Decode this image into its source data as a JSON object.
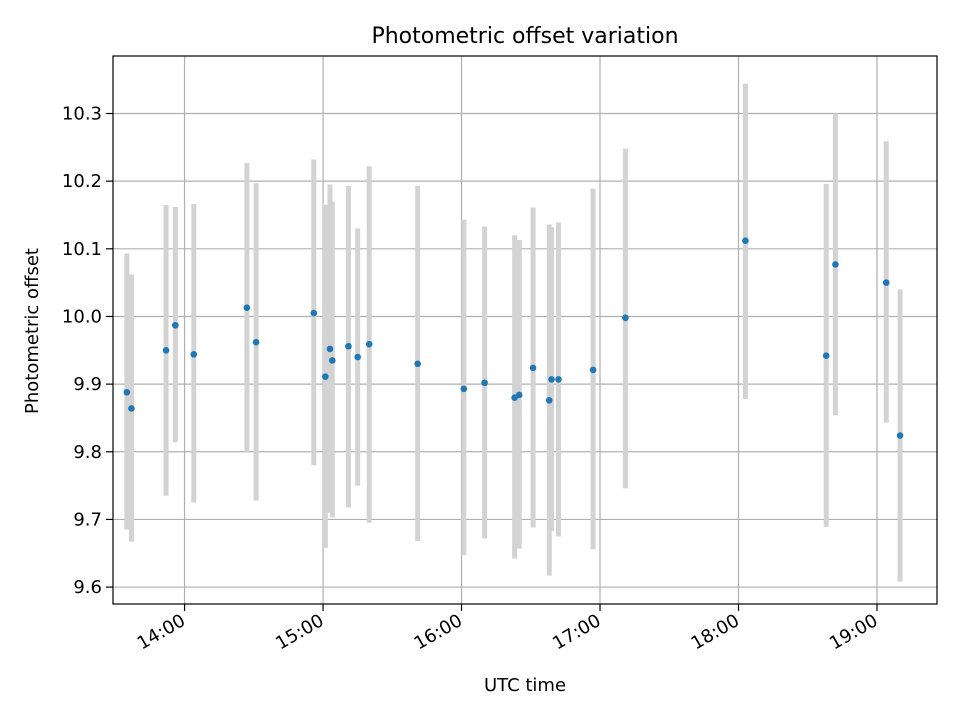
{
  "chart_data": {
    "type": "scatter",
    "title": "Photometric offset variation",
    "xlabel": "UTC time",
    "ylabel": "Photometric offset",
    "x_axis": {
      "kind": "time",
      "range": [
        "13:29",
        "19:26"
      ],
      "ticks": [
        "14:00",
        "15:00",
        "16:00",
        "17:00",
        "18:00",
        "19:00"
      ]
    },
    "y_axis": {
      "range": [
        9.575,
        10.385
      ],
      "ticks": [
        9.6,
        9.7,
        9.8,
        9.9,
        10.0,
        10.1,
        10.2,
        10.3
      ],
      "tick_labels": [
        "9.6",
        "9.7",
        "9.8",
        "9.9",
        "10.0",
        "10.1",
        "10.2",
        "10.3"
      ]
    },
    "grid": true,
    "colors": {
      "points": "#1f77b4",
      "error_bars": "#d3d3d3",
      "grid": "#b0b0b0"
    },
    "series": [
      {
        "marker": "point",
        "error_bars": "vertical",
        "points": [
          {
            "x": "13:35",
            "y": 9.888,
            "ylow": 9.685,
            "yhigh": 10.093
          },
          {
            "x": "13:37",
            "y": 9.864,
            "ylow": 9.667,
            "yhigh": 10.062
          },
          {
            "x": "13:52",
            "y": 9.95,
            "ylow": 9.735,
            "yhigh": 10.165
          },
          {
            "x": "13:56",
            "y": 9.987,
            "ylow": 9.814,
            "yhigh": 10.162
          },
          {
            "x": "14:04",
            "y": 9.944,
            "ylow": 9.725,
            "yhigh": 10.166
          },
          {
            "x": "14:27",
            "y": 10.013,
            "ylow": 9.8,
            "yhigh": 10.227
          },
          {
            "x": "14:31",
            "y": 9.962,
            "ylow": 9.728,
            "yhigh": 10.197
          },
          {
            "x": "14:56",
            "y": 10.005,
            "ylow": 9.78,
            "yhigh": 10.232
          },
          {
            "x": "15:01",
            "y": 9.911,
            "ylow": 9.658,
            "yhigh": 10.165
          },
          {
            "x": "15:03",
            "y": 9.952,
            "ylow": 9.71,
            "yhigh": 10.195
          },
          {
            "x": "15:04",
            "y": 9.935,
            "ylow": 9.703,
            "yhigh": 10.17
          },
          {
            "x": "15:11",
            "y": 9.956,
            "ylow": 9.718,
            "yhigh": 10.193
          },
          {
            "x": "15:15",
            "y": 9.94,
            "ylow": 9.75,
            "yhigh": 10.13
          },
          {
            "x": "15:20",
            "y": 9.959,
            "ylow": 9.695,
            "yhigh": 10.222
          },
          {
            "x": "15:41",
            "y": 9.93,
            "ylow": 9.668,
            "yhigh": 10.193
          },
          {
            "x": "16:01",
            "y": 9.893,
            "ylow": 9.647,
            "yhigh": 10.143
          },
          {
            "x": "16:10",
            "y": 9.902,
            "ylow": 9.672,
            "yhigh": 10.133
          },
          {
            "x": "16:23",
            "y": 9.88,
            "ylow": 9.642,
            "yhigh": 10.12
          },
          {
            "x": "16:25",
            "y": 9.884,
            "ylow": 9.657,
            "yhigh": 10.113
          },
          {
            "x": "16:31",
            "y": 9.924,
            "ylow": 9.688,
            "yhigh": 10.161
          },
          {
            "x": "16:38",
            "y": 9.876,
            "ylow": 9.617,
            "yhigh": 10.136
          },
          {
            "x": "16:39",
            "y": 9.907,
            "ylow": 9.683,
            "yhigh": 10.132
          },
          {
            "x": "16:42",
            "y": 9.907,
            "ylow": 9.675,
            "yhigh": 10.139
          },
          {
            "x": "16:57",
            "y": 9.921,
            "ylow": 9.656,
            "yhigh": 10.189
          },
          {
            "x": "17:11",
            "y": 9.998,
            "ylow": 9.746,
            "yhigh": 10.248
          },
          {
            "x": "18:03",
            "y": 10.112,
            "ylow": 9.878,
            "yhigh": 10.344
          },
          {
            "x": "18:38",
            "y": 9.942,
            "ylow": 9.689,
            "yhigh": 10.196
          },
          {
            "x": "18:42",
            "y": 10.077,
            "ylow": 9.854,
            "yhigh": 10.3
          },
          {
            "x": "19:04",
            "y": 10.05,
            "ylow": 9.843,
            "yhigh": 10.259
          },
          {
            "x": "19:10",
            "y": 9.824,
            "ylow": 9.608,
            "yhigh": 10.04
          }
        ]
      }
    ]
  }
}
